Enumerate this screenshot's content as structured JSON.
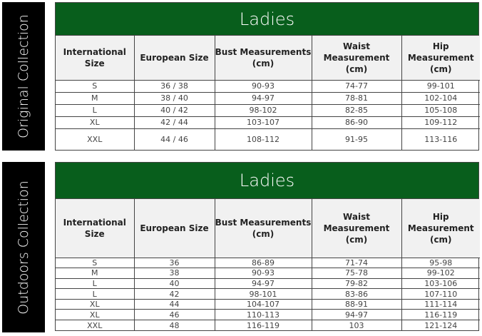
{
  "sections": [
    {
      "label": "Original Collection",
      "title": "Ladies",
      "headers": [
        "International Size",
        "European Size",
        "Bust Measurements (cm)",
        "Waist Measurement (cm)",
        "Hip Measurement (cm)"
      ],
      "rows": [
        [
          "S",
          "36 / 38",
          "90-93",
          "74-77",
          "99-101"
        ],
        [
          "M",
          "38 / 40",
          "94-97",
          "78-81",
          "102-104"
        ],
        [
          "L",
          "40 / 42",
          "98-102",
          "82-85",
          "105-108"
        ],
        [
          "XL",
          "42 / 44",
          "103-107",
          "86-90",
          "109-112"
        ],
        [
          "XXL",
          "44 / 46",
          "108-112",
          "91-95",
          "113-116"
        ]
      ]
    },
    {
      "label": "Outdoors Collection",
      "title": "Ladies",
      "headers": [
        "International Size",
        "European Size",
        "Bust Measurements (cm)",
        "Waist Measurement (cm)",
        "Hip Measurement (cm)"
      ],
      "rows": [
        [
          "S",
          "36",
          "86-89",
          "71-74",
          "95-98"
        ],
        [
          "M",
          "38",
          "90-93",
          "75-78",
          "99-102"
        ],
        [
          "L",
          "40",
          "94-97",
          "79-82",
          "103-106"
        ],
        [
          "L",
          "42",
          "98-101",
          "83-86",
          "107-110"
        ],
        [
          "XL",
          "44",
          "104-107",
          "88-91",
          "111-114"
        ],
        [
          "XL",
          "46",
          "110-113",
          "94-97",
          "116-119"
        ],
        [
          "XXL",
          "48",
          "116-119",
          "103",
          "121-124"
        ]
      ]
    }
  ],
  "colors": {
    "header_green": "#085e1c",
    "side_label_bg": "#000000",
    "column_header_bg": "#f1f1f1"
  }
}
